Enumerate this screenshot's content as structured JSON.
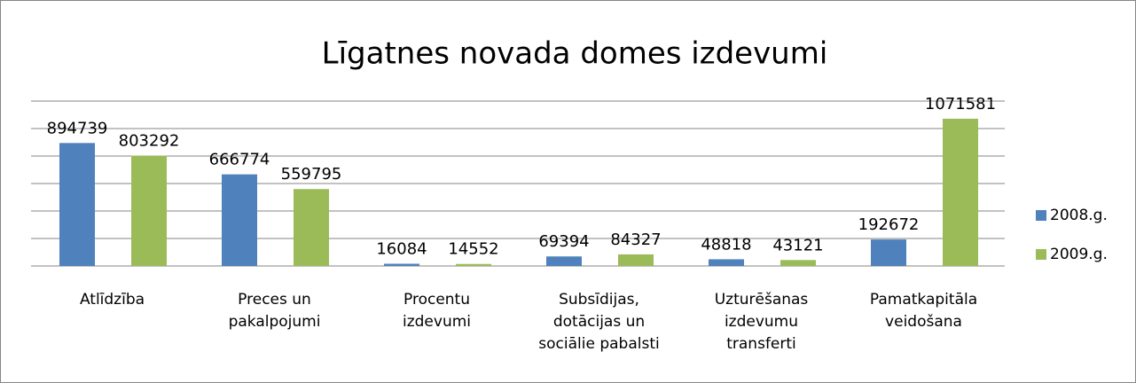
{
  "chart_data": {
    "type": "bar",
    "title": "Līgatnes novada domes izdevumi",
    "categories": [
      "Atlīdzība",
      "Preces un\npakalpojumi",
      "Procentu\nizdevumi",
      "Subsīdijas,\ndotācijas un\nsociālie pabalsti",
      "Uzturēšanas\nizdevumu\ntransferti",
      "Pamatkapitāla\nveidošana"
    ],
    "series": [
      {
        "name": "2008.g.",
        "color": "#4f81bd",
        "values": [
          894739,
          666774,
          16084,
          69394,
          48818,
          192672
        ]
      },
      {
        "name": "2009.g.",
        "color": "#9bbb59",
        "values": [
          803292,
          559795,
          14552,
          84327,
          43121,
          1071581
        ]
      }
    ],
    "ylim": [
      0,
      1200000
    ],
    "yticks": [
      0,
      200000,
      400000,
      600000,
      800000,
      1000000,
      1200000
    ],
    "grid": true,
    "legend": "right"
  }
}
